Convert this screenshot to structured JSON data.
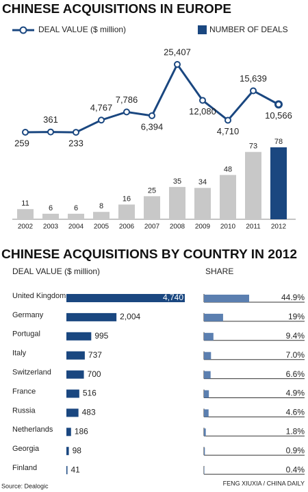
{
  "chart_data": [
    {
      "type": "combo",
      "title": "CHINESE ACQUISITIONS IN EUROPE",
      "categories": [
        "2002",
        "2003",
        "2004",
        "2005",
        "2006",
        "2007",
        "2008",
        "2009",
        "2010",
        "2011",
        "2012"
      ],
      "series": [
        {
          "name": "DEAL VALUE ($ million)",
          "type": "line",
          "color": "#1a4780",
          "values": [
            259,
            361,
            233,
            4767,
            7786,
            6394,
            25407,
            12080,
            4710,
            15639,
            10566
          ],
          "value_labels": [
            "259",
            "361",
            "233",
            "4,767",
            "7,786",
            "6,394",
            "25,407",
            "12,080",
            "4,710",
            "15,639",
            "10,566"
          ]
        },
        {
          "name": "NUMBER OF DEALS",
          "type": "bar",
          "color": "#1a4780",
          "colors": [
            "#c8c8c8",
            "#c8c8c8",
            "#c8c8c8",
            "#c8c8c8",
            "#c8c8c8",
            "#c8c8c8",
            "#c8c8c8",
            "#c8c8c8",
            "#c8c8c8",
            "#c8c8c8",
            "#1a4780"
          ],
          "values": [
            11,
            6,
            6,
            8,
            16,
            25,
            35,
            34,
            48,
            73,
            78
          ]
        }
      ]
    },
    {
      "type": "hbar",
      "title": "CHINESE ACQUISITIONS BY COUNTRY IN 2012",
      "categories": [
        "United Kingdom",
        "Germany",
        "Portugal",
        "Italy",
        "Switzerland",
        "France",
        "Russia",
        "Netherlands",
        "Georgia",
        "Finland"
      ],
      "series": [
        {
          "name": "DEAL VALUE ($ million)",
          "color": "#1a4780",
          "values": [
            4740,
            2004,
            995,
            737,
            700,
            516,
            483,
            186,
            98,
            41
          ],
          "value_labels": [
            "4,740",
            "2,004",
            "995",
            "737",
            "700",
            "516",
            "483",
            "186",
            "98",
            "41"
          ]
        },
        {
          "name": "SHARE",
          "color": "#5b7fb0",
          "values": [
            44.9,
            19,
            9.4,
            7,
            6.6,
            4.9,
            4.6,
            1.8,
            0.9,
            0.4
          ],
          "value_labels": [
            "44.9%",
            "19%",
            "9.4%",
            "7.0%",
            "6.6%",
            "4.9%",
            "4.6%",
            "1.8%",
            "0.9%",
            "0.4%"
          ]
        }
      ],
      "source": "Source: Dealogic",
      "credit": "FENG XIUXIA / CHINA DAILY"
    }
  ]
}
